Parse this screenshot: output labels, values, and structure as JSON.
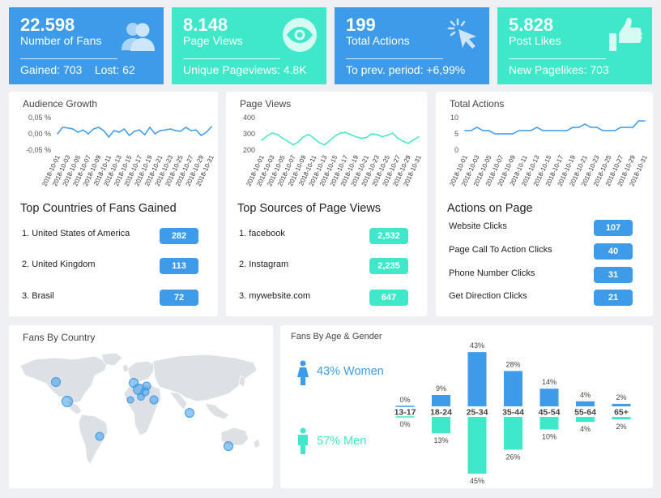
{
  "colors": {
    "blue": "#3d9be9",
    "teal": "#3ee8c8",
    "map_land": "#dde0e4",
    "bubble": "#3d9be9"
  },
  "kpis": [
    {
      "value": "22.598",
      "label": "Number of Fans",
      "sub1": "Gained: 703",
      "sub2": "Lost: 62",
      "icon": "users-icon"
    },
    {
      "value": "8.148",
      "label": "Page Views",
      "sub1": "Unique Pageviews: 4.8K",
      "icon": "eye-icon"
    },
    {
      "value": "199",
      "label": "Total Actions",
      "sub1": "To prev. period: +6,99%",
      "icon": "cursor-click-icon"
    },
    {
      "value": "5.828",
      "label": "Post Likes",
      "sub1": "New Pagelikes: 703",
      "icon": "thumbs-up-icon"
    }
  ],
  "chart_data": [
    {
      "type": "line",
      "title": "Audience Growth",
      "x": [
        "2018-10-01",
        "2018-10-02",
        "2018-10-03",
        "2018-10-04",
        "2018-10-05",
        "2018-10-06",
        "2018-10-07",
        "2018-10-08",
        "2018-10-09",
        "2018-10-10",
        "2018-10-11",
        "2018-10-12",
        "2018-10-13",
        "2018-10-14",
        "2018-10-15",
        "2018-10-16",
        "2018-10-17",
        "2018-10-18",
        "2018-10-19",
        "2018-10-20",
        "2018-10-21",
        "2018-10-22",
        "2018-10-23",
        "2018-10-24",
        "2018-10-25",
        "2018-10-26",
        "2018-10-27",
        "2018-10-28",
        "2018-10-29",
        "2018-10-30",
        "2018-10-31"
      ],
      "xticks": [
        "2018-10-01",
        "2018-10-03",
        "2018-10-05",
        "2018-10-07",
        "2018-10-09",
        "2018-10-11",
        "2018-10-13",
        "2018-10-15",
        "2018-10-17",
        "2018-10-19",
        "2018-10-21",
        "2018-10-23",
        "2018-10-25",
        "2018-10-27",
        "2018-10-29",
        "2018-10-31"
      ],
      "yticks": [
        "0,05 %",
        "0,00 %",
        "-0,05 %"
      ],
      "ylim": [
        -0.05,
        0.05
      ],
      "values": [
        0.0,
        0.02,
        0.018,
        0.015,
        0.005,
        0.012,
        0.0,
        0.015,
        0.02,
        0.01,
        -0.01,
        0.01,
        0.005,
        0.015,
        -0.005,
        0.008,
        0.012,
        -0.003,
        0.02,
        0.0,
        0.01,
        0.012,
        0.015,
        0.01,
        0.008,
        0.02,
        0.01,
        0.012,
        -0.005,
        0.005,
        0.022
      ]
    },
    {
      "type": "line",
      "title": "Page Views",
      "x": [
        "2018-10-01",
        "2018-10-02",
        "2018-10-03",
        "2018-10-04",
        "2018-10-05",
        "2018-10-06",
        "2018-10-07",
        "2018-10-08",
        "2018-10-09",
        "2018-10-10",
        "2018-10-11",
        "2018-10-12",
        "2018-10-13",
        "2018-10-14",
        "2018-10-15",
        "2018-10-16",
        "2018-10-17",
        "2018-10-18",
        "2018-10-19",
        "2018-10-20",
        "2018-10-21",
        "2018-10-22",
        "2018-10-23",
        "2018-10-24",
        "2018-10-25",
        "2018-10-26",
        "2018-10-27",
        "2018-10-28",
        "2018-10-29",
        "2018-10-30",
        "2018-10-31"
      ],
      "xticks": [
        "2018-10-01",
        "2018-10-03",
        "2018-10-05",
        "2018-10-07",
        "2018-10-09",
        "2018-10-11",
        "2018-10-13",
        "2018-10-15",
        "2018-10-17",
        "2018-10-19",
        "2018-10-21",
        "2018-10-23",
        "2018-10-25",
        "2018-10-27",
        "2018-10-29",
        "2018-10-31"
      ],
      "yticks": [
        "400",
        "300",
        "200"
      ],
      "ylim": [
        180,
        400
      ],
      "values": [
        245,
        275,
        295,
        285,
        260,
        240,
        215,
        235,
        270,
        285,
        260,
        230,
        215,
        245,
        275,
        295,
        300,
        285,
        270,
        260,
        265,
        290,
        285,
        270,
        280,
        295,
        260,
        240,
        225,
        250,
        270
      ]
    },
    {
      "type": "line",
      "title": "Total Actions",
      "x": [
        "2018-10-01",
        "2018-10-02",
        "2018-10-03",
        "2018-10-04",
        "2018-10-05",
        "2018-10-06",
        "2018-10-07",
        "2018-10-08",
        "2018-10-09",
        "2018-10-10",
        "2018-10-11",
        "2018-10-12",
        "2018-10-13",
        "2018-10-14",
        "2018-10-15",
        "2018-10-16",
        "2018-10-17",
        "2018-10-18",
        "2018-10-19",
        "2018-10-20",
        "2018-10-21",
        "2018-10-22",
        "2018-10-23",
        "2018-10-24",
        "2018-10-25",
        "2018-10-26",
        "2018-10-27",
        "2018-10-28",
        "2018-10-29",
        "2018-10-30",
        "2018-10-31"
      ],
      "xticks": [
        "2018-10-01",
        "2018-10-03",
        "2018-10-05",
        "2018-10-07",
        "2018-10-09",
        "2018-10-11",
        "2018-10-13",
        "2018-10-15",
        "2018-10-17",
        "2018-10-19",
        "2018-10-21",
        "2018-10-23",
        "2018-10-25",
        "2018-10-27",
        "2018-10-29",
        "2018-10-31"
      ],
      "yticks": [
        "10",
        "5",
        "0"
      ],
      "ylim": [
        0,
        10
      ],
      "values": [
        6,
        6,
        7,
        6,
        6,
        5,
        5,
        5,
        5,
        6,
        6,
        6,
        7,
        6,
        6,
        6,
        6,
        6,
        7,
        7,
        8,
        7,
        7,
        6,
        6,
        6,
        7,
        7,
        7,
        9,
        9
      ]
    },
    {
      "type": "bar",
      "title": "Fans By Age & Gender",
      "categories": [
        "13-17",
        "18-24",
        "25-34",
        "35-44",
        "45-54",
        "55-64",
        "65+"
      ],
      "series": [
        {
          "name": "43% Women",
          "values": [
            0,
            9,
            43,
            28,
            14,
            4,
            2
          ],
          "labels": [
            "0%",
            "9%",
            "43%",
            "28%",
            "14%",
            "4%",
            "2%"
          ]
        },
        {
          "name": "57% Men",
          "values": [
            0,
            13,
            45,
            26,
            10,
            4,
            2
          ],
          "labels": [
            "0%",
            "13%",
            "45%",
            "26%",
            "10%",
            "4%",
            "2%"
          ]
        }
      ]
    }
  ],
  "audience_title": "Audience Growth",
  "pageviews_title": "Page Views",
  "actions_title": "Total Actions",
  "countries": {
    "title": "Top Countries of Fans Gained",
    "items": [
      {
        "name": "1. United States of America",
        "value": "282"
      },
      {
        "name": "2. United Kingdom",
        "value": "113"
      },
      {
        "name": "3. Brasil",
        "value": "72"
      }
    ]
  },
  "sources": {
    "title": "Top Sources of Page Views",
    "items": [
      {
        "name": "1. facebook",
        "value": "2,532"
      },
      {
        "name": "2. Instagram",
        "value": "2,235"
      },
      {
        "name": "3. mywebsite.com",
        "value": "647"
      }
    ]
  },
  "actions": {
    "title": "Actions on Page",
    "items": [
      {
        "name": "Website Clicks",
        "value": "107"
      },
      {
        "name": "Page Call To Action Clicks",
        "value": "40"
      },
      {
        "name": "Phone Number Clicks",
        "value": "31"
      },
      {
        "name": "Get Direction Clicks",
        "value": "21"
      }
    ]
  },
  "map": {
    "title": "Fans By Country"
  },
  "gender": {
    "title": "Fans By Age & Gender",
    "women": "43% Women",
    "men": "57% Men"
  }
}
